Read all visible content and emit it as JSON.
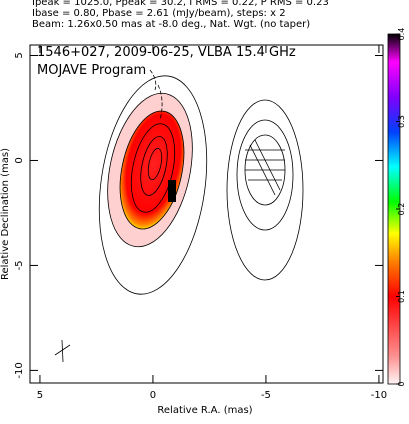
{
  "header": {
    "lines": [
      "Ipeak = 1025.0, Ppeak = 30.2, I RMS = 0.22, P RMS = 0.23",
      "Ibase = 0.80, Pbase = 2.61 (mJy/beam), steps: x 2",
      "Beam: 1.26x0.50 mas at -8.0 deg., Nat. Wgt. (no taper)"
    ]
  },
  "chart_data": {
    "type": "contour",
    "annotations": [
      "1546+027, 2009-06-25, VLBA 15.4 GHz",
      "MOJAVE Program"
    ],
    "x_label": "Relative R.A. (mas)",
    "y_label": "Relative Declination (mas)",
    "xlim": [
      5.44,
      -10.18
    ],
    "ylim": [
      -10.6,
      5.5
    ],
    "xticks": [
      5,
      0,
      -5,
      -10
    ],
    "yticks": [
      5,
      0,
      -5,
      -10
    ],
    "colorbar": {
      "clim": [
        0,
        0.4
      ],
      "ticks": [
        0,
        0.1,
        0.2,
        0.3,
        0.4
      ]
    }
  }
}
